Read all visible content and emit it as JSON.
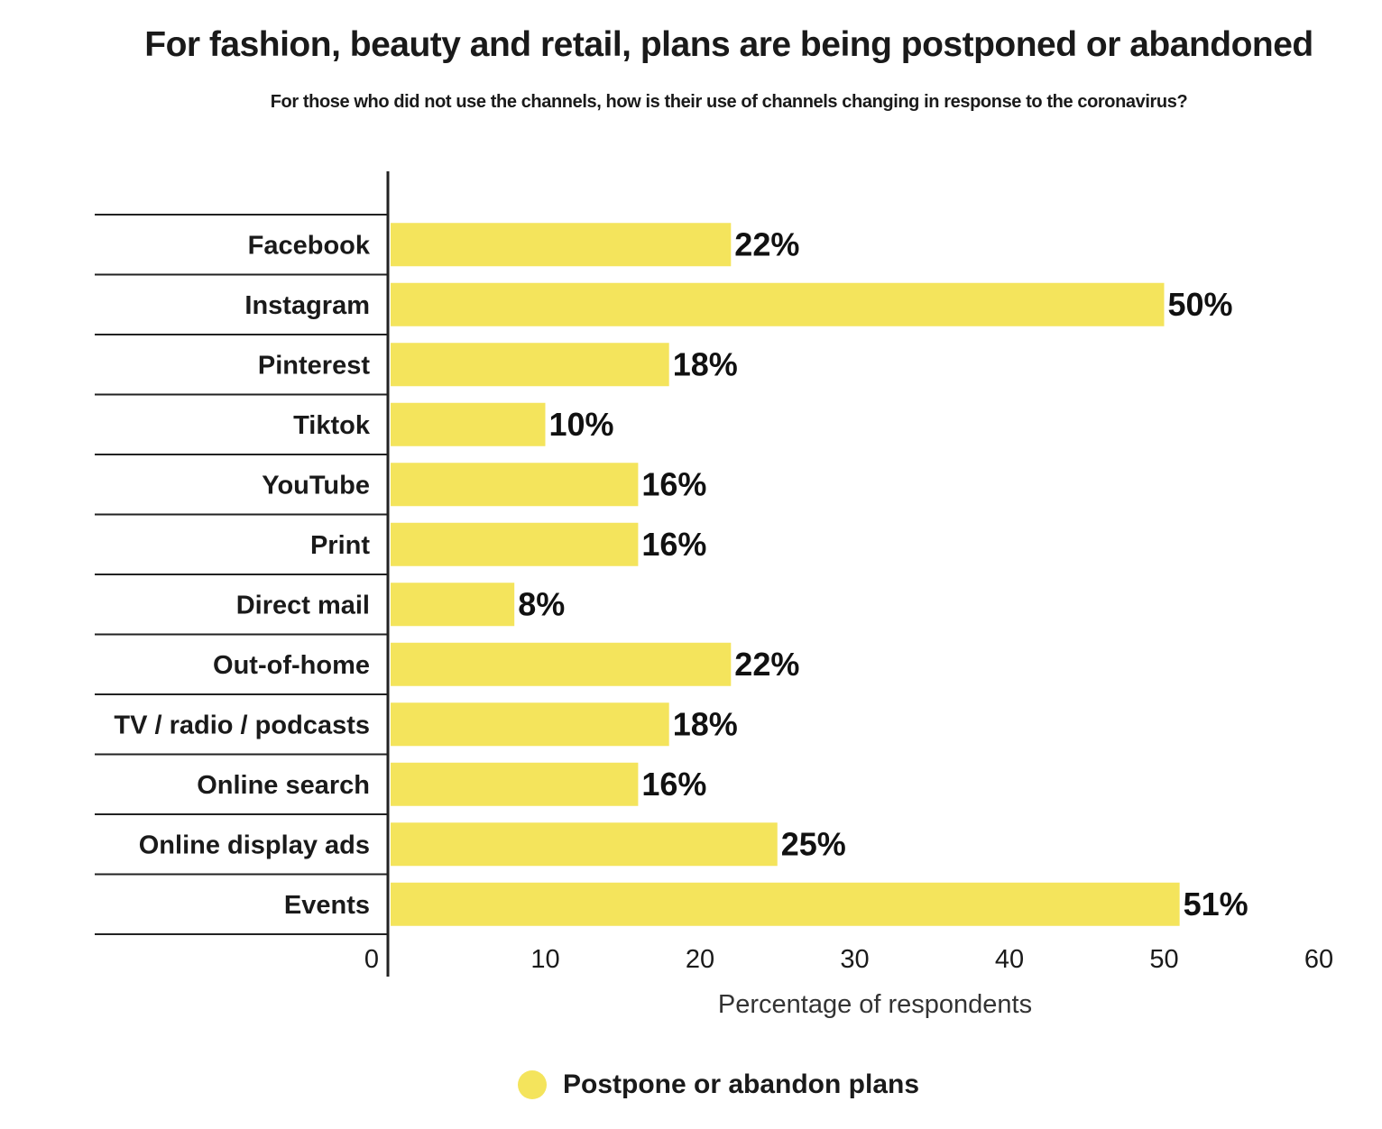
{
  "chart_data": {
    "type": "bar",
    "orientation": "horizontal",
    "title": "For fashion, beauty and retail, plans are being postponed or abandoned",
    "subtitle": "For those who did not use the channels, how is their use of channels changing in response to the coronavirus?",
    "categories": [
      "Facebook",
      "Instagram",
      "Pinterest",
      "Tiktok",
      "YouTube",
      "Print",
      "Direct mail",
      "Out-of-home",
      "TV / radio / podcasts",
      "Online search",
      "Online display ads",
      "Events"
    ],
    "series": [
      {
        "name": "Postpone or abandon plans",
        "values": [
          22,
          50,
          18,
          10,
          16,
          16,
          8,
          22,
          18,
          16,
          25,
          51
        ],
        "labels": [
          "22%",
          "50%",
          "18%",
          "10%",
          "16%",
          "16%",
          "8%",
          "22%",
          "18%",
          "16%",
          "25%",
          "51%"
        ]
      }
    ],
    "xlabel": "Percentage of respondents",
    "ylabel": "",
    "xlim": [
      0,
      60
    ],
    "xticks": [
      "0",
      "10",
      "20",
      "30",
      "40",
      "50",
      "60"
    ],
    "grid": false,
    "legend_position": "bottom",
    "bar_color": "#f4e45c"
  }
}
